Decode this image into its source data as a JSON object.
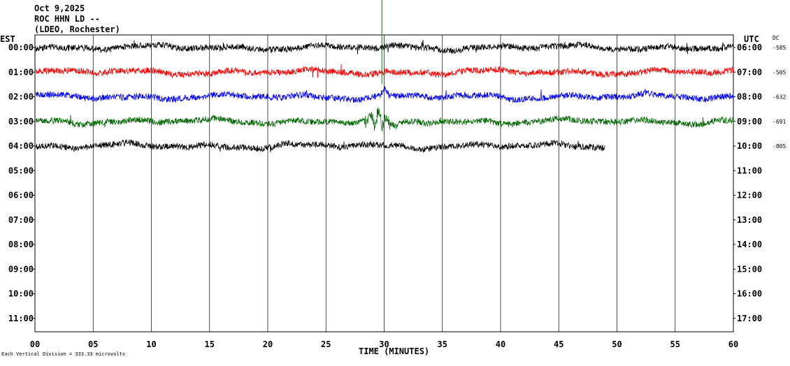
{
  "header": {
    "date": "Oct 9,2025",
    "station": "ROC HHN LD --",
    "network": "(LDEO, Rochester)"
  },
  "left_axis_label": "EST",
  "right_axis_label": "UTC",
  "dc_label": "DC",
  "footer_note": "Each Vertical Division =  333.33 microvolts",
  "colors": {
    "trace_cycle": [
      "#000000",
      "#ff0000",
      "#0000ff",
      "#006600"
    ],
    "grid": "#000000",
    "background": "#ffffff"
  },
  "chart_data": {
    "type": "line",
    "title": "Oct 9,2025",
    "xlabel": "TIME (MINUTES)",
    "ylabel": "EST",
    "xlim": [
      0,
      60
    ],
    "x_ticks": [
      "00",
      "05",
      "10",
      "15",
      "20",
      "25",
      "30",
      "35",
      "40",
      "45",
      "50",
      "55",
      "60"
    ],
    "y_ticks_left": [
      "00:00",
      "01:00",
      "02:00",
      "03:00",
      "04:00",
      "05:00",
      "06:00",
      "07:00",
      "08:00",
      "09:00",
      "10:00",
      "11:00"
    ],
    "y_ticks_right": [
      "06:00",
      "07:00",
      "08:00",
      "09:00",
      "10:00",
      "11:00",
      "12:00",
      "13:00",
      "14:00",
      "15:00",
      "16:00",
      "17:00"
    ],
    "grid": "vertical",
    "series": [
      {
        "row": 0,
        "color": "#000000",
        "dc": "-585",
        "end_minute": 60
      },
      {
        "row": 1,
        "color": "#ff0000",
        "dc": "-505",
        "end_minute": 60
      },
      {
        "row": 2,
        "color": "#0000ff",
        "dc": "-632",
        "end_minute": 60
      },
      {
        "row": 3,
        "color": "#006600",
        "dc": "-691",
        "end_minute": 60
      },
      {
        "row": 4,
        "color": "#000000",
        "dc": "-805",
        "end_minute": 49
      }
    ]
  }
}
